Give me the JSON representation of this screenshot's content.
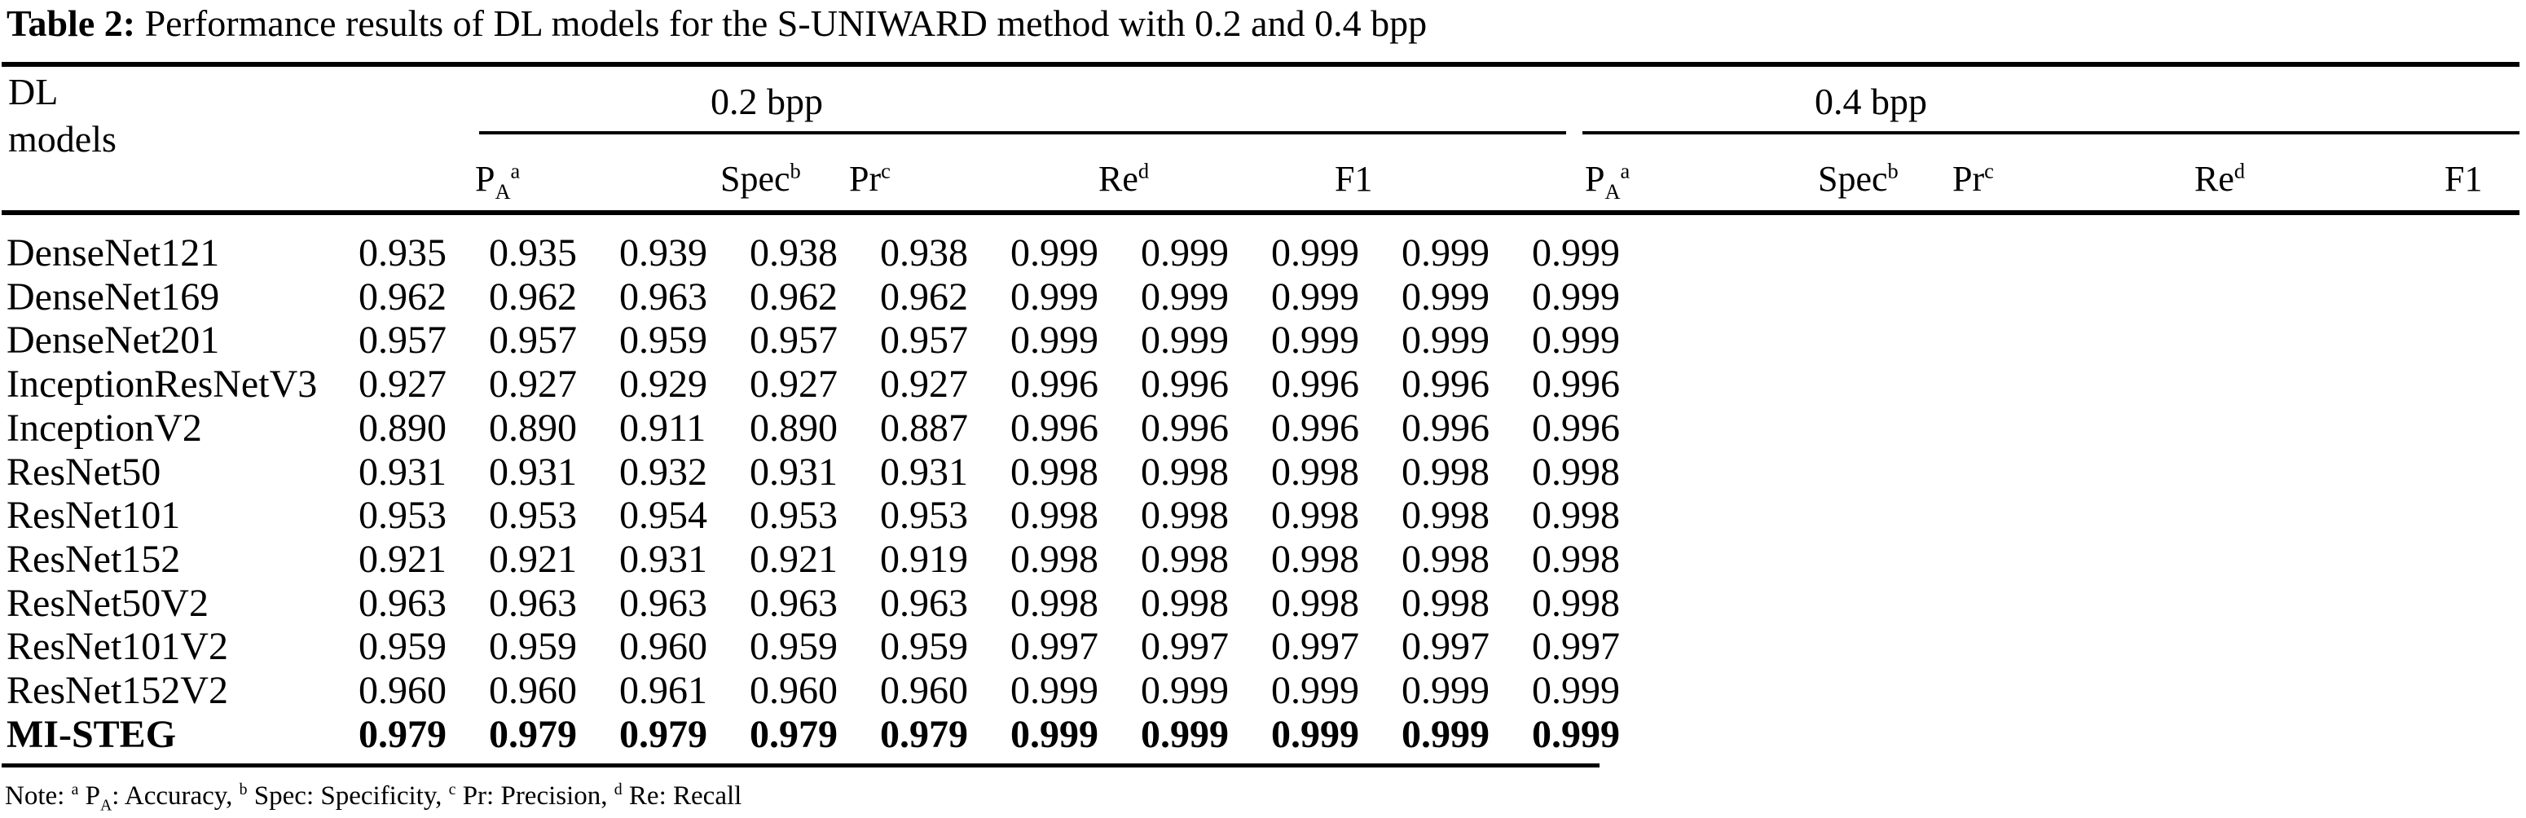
{
  "caption": {
    "label": "Table 2:",
    "text": "Performance results of DL models for the S-UNIWARD method with 0.2 and 0.4 bpp"
  },
  "table": {
    "stub_header": [
      "DL",
      "models"
    ],
    "groups": [
      {
        "label": "0.2 bpp"
      },
      {
        "label": "0.4 bpp"
      }
    ],
    "column_headers": [
      {
        "text": "P",
        "sub": "A",
        "sup": "a",
        "group": "0.2 bpp"
      },
      {
        "text": "Spec",
        "sup": "b",
        "group": "0.2 bpp"
      },
      {
        "text": "Pr",
        "sup": "c",
        "group": "0.2 bpp"
      },
      {
        "text": "Re",
        "sup": "d",
        "group": "0.2 bpp"
      },
      {
        "text": "F1",
        "group": "0.2 bpp"
      },
      {
        "text": "P",
        "sub": "A",
        "sup": "a",
        "group": "0.4 bpp"
      },
      {
        "text": "Spec",
        "sup": "b",
        "group": "0.4 bpp"
      },
      {
        "text": "Pr",
        "sup": "c",
        "group": "0.4 bpp"
      },
      {
        "text": "Re",
        "sup": "d",
        "group": "0.4 bpp"
      },
      {
        "text": "F1",
        "group": "0.4 bpp"
      }
    ],
    "rows": [
      {
        "model": "DenseNet121",
        "bold": false,
        "values": [
          "0.935",
          "0.935",
          "0.939",
          "0.938",
          "0.938",
          "0.999",
          "0.999",
          "0.999",
          "0.999",
          "0.999"
        ]
      },
      {
        "model": "DenseNet169",
        "bold": false,
        "values": [
          "0.962",
          "0.962",
          "0.963",
          "0.962",
          "0.962",
          "0.999",
          "0.999",
          "0.999",
          "0.999",
          "0.999"
        ]
      },
      {
        "model": "DenseNet201",
        "bold": false,
        "values": [
          "0.957",
          "0.957",
          "0.959",
          "0.957",
          "0.957",
          "0.999",
          "0.999",
          "0.999",
          "0.999",
          "0.999"
        ]
      },
      {
        "model": "InceptionResNetV3",
        "bold": false,
        "values": [
          "0.927",
          "0.927",
          "0.929",
          "0.927",
          "0.927",
          "0.996",
          "0.996",
          "0.996",
          "0.996",
          "0.996"
        ]
      },
      {
        "model": "InceptionV2",
        "bold": false,
        "values": [
          "0.890",
          "0.890",
          "0.911",
          "0.890",
          "0.887",
          "0.996",
          "0.996",
          "0.996",
          "0.996",
          "0.996"
        ]
      },
      {
        "model": "ResNet50",
        "bold": false,
        "values": [
          "0.931",
          "0.931",
          "0.932",
          "0.931",
          "0.931",
          "0.998",
          "0.998",
          "0.998",
          "0.998",
          "0.998"
        ]
      },
      {
        "model": "ResNet101",
        "bold": false,
        "values": [
          "0.953",
          "0.953",
          "0.954",
          "0.953",
          "0.953",
          "0.998",
          "0.998",
          "0.998",
          "0.998",
          "0.998"
        ]
      },
      {
        "model": "ResNet152",
        "bold": false,
        "values": [
          "0.921",
          "0.921",
          "0.931",
          "0.921",
          "0.919",
          "0.998",
          "0.998",
          "0.998",
          "0.998",
          "0.998"
        ]
      },
      {
        "model": "ResNet50V2",
        "bold": false,
        "values": [
          "0.963",
          "0.963",
          "0.963",
          "0.963",
          "0.963",
          "0.998",
          "0.998",
          "0.998",
          "0.998",
          "0.998"
        ]
      },
      {
        "model": "ResNet101V2",
        "bold": false,
        "values": [
          "0.959",
          "0.959",
          "0.960",
          "0.959",
          "0.959",
          "0.997",
          "0.997",
          "0.997",
          "0.997",
          "0.997"
        ]
      },
      {
        "model": "ResNet152V2",
        "bold": false,
        "values": [
          "0.960",
          "0.960",
          "0.961",
          "0.960",
          "0.960",
          "0.999",
          "0.999",
          "0.999",
          "0.999",
          "0.999"
        ]
      },
      {
        "model": "MI-STEG",
        "bold": true,
        "values": [
          "0.979",
          "0.979",
          "0.979",
          "0.979",
          "0.979",
          "0.999",
          "0.999",
          "0.999",
          "0.999",
          "0.999"
        ]
      }
    ]
  },
  "footnote": {
    "prefix": "Note:",
    "items": [
      {
        "sup": "a",
        "text": "P",
        "sub": "A",
        "desc": ": Accuracy,"
      },
      {
        "sup": "b",
        "text": "Spec",
        "desc": ": Specificity,"
      },
      {
        "sup": "c",
        "text": "Pr",
        "desc": ": Precision,"
      },
      {
        "sup": "d",
        "text": "Re",
        "desc": ": Recall"
      }
    ]
  }
}
